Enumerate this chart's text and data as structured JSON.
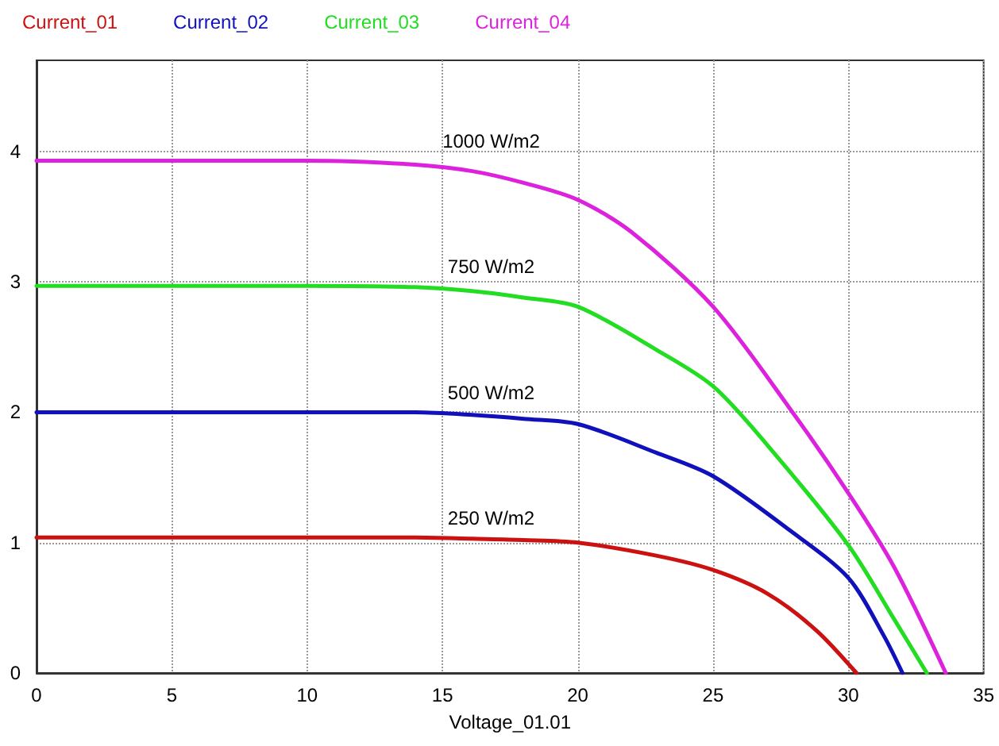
{
  "chart_data": {
    "type": "line",
    "xlabel": "Voltage_01.01",
    "x": [
      0,
      5,
      10,
      14,
      16.1,
      18,
      20,
      22,
      22.9,
      25,
      27,
      27.8,
      28.8,
      30,
      30.3,
      31.3,
      31.7,
      32,
      32.9,
      33.6
    ],
    "series": [
      {
        "name": "Current_01",
        "color": "#cc1111",
        "values": [
          1.04,
          1.04,
          1.04,
          1.04,
          1.03,
          1.02,
          1.0,
          null,
          0.9,
          0.79,
          0.61,
          null,
          0.33,
          null,
          0,
          null,
          null,
          null,
          null,
          null
        ]
      },
      {
        "name": "Current_02",
        "color": "#1111bb",
        "values": [
          2.0,
          2.0,
          2.0,
          2.0,
          1.98,
          1.95,
          1.91,
          null,
          1.69,
          1.51,
          null,
          1.1,
          null,
          0.73,
          null,
          0.29,
          null,
          0,
          null,
          null
        ]
      },
      {
        "name": "Current_03",
        "color": "#22dd22",
        "values": [
          2.97,
          2.97,
          2.97,
          2.96,
          2.93,
          2.88,
          2.81,
          null,
          2.48,
          2.2,
          1.75,
          null,
          null,
          0.98,
          null,
          null,
          0.41,
          null,
          0,
          null
        ]
      },
      {
        "name": "Current_04",
        "color": "#dd22dd",
        "values": [
          3.93,
          3.93,
          3.93,
          3.9,
          3.85,
          3.76,
          3.63,
          3.38,
          null,
          2.81,
          null,
          2.04,
          null,
          1.38,
          null,
          null,
          0.81,
          null,
          null,
          0
        ]
      }
    ],
    "annotations": [
      "250 W/m2",
      "500 W/m2",
      "750 W/m2",
      "1000 W/m2"
    ],
    "xlim": [
      0,
      35
    ],
    "xticks": [
      0,
      5,
      10,
      15,
      20,
      25,
      30,
      35
    ],
    "ylim": [
      0,
      4.7
    ],
    "yticks": [
      0,
      1,
      2,
      3,
      4
    ],
    "grid": true,
    "legend": "top left",
    "marker": "none",
    "line_style": "solid"
  }
}
